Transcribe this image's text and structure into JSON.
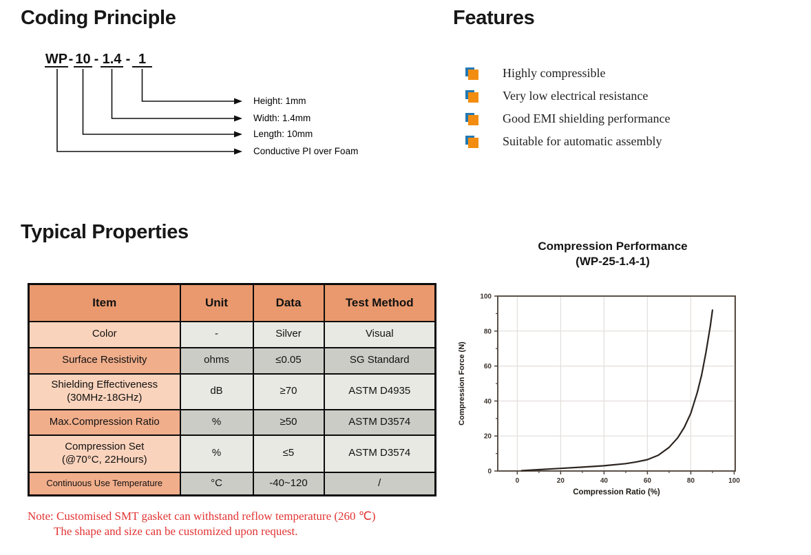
{
  "colors": {
    "accent_orange": "#E9996D",
    "row_item_light": "#FAD3BC",
    "row_item_medium": "#F1AE8B",
    "row_cell_light": "#E9E9E3",
    "row_cell_dark": "#CCCCC6",
    "bullet_orange": "#F28D11",
    "bullet_blue": "#2278B5",
    "note_red": "#E33434",
    "curve_color": "#2B2420"
  },
  "sections": {
    "coding": {
      "title": "Coding Principle",
      "code": {
        "parts": [
          "WP",
          "10",
          "1.4",
          "1"
        ],
        "separator": "-"
      },
      "callouts": [
        "Height: 1mm",
        "Width: 1.4mm",
        "Length: 10mm",
        "Conductive PI over Foam"
      ]
    },
    "features": {
      "title": "Features",
      "items": [
        "Highly compressible",
        "Very low electrical resistance",
        "Good EMI shielding performance",
        "Suitable for automatic assembly"
      ]
    },
    "properties": {
      "title": "Typical Properties",
      "table": {
        "headers": [
          "Item",
          "Unit",
          "Data",
          "Test Method"
        ],
        "rows": [
          {
            "item": "Color",
            "item2": "",
            "unit": "-",
            "data": "Silver",
            "method": "Visual"
          },
          {
            "item": "Surface Resistivity",
            "item2": "",
            "unit": "ohms",
            "data": "≤0.05",
            "method": "SG Standard"
          },
          {
            "item": "Shielding Effectiveness",
            "item2": "(30MHz-18GHz)",
            "unit": "dB",
            "data": "≥70",
            "method": "ASTM D4935"
          },
          {
            "item": "Max.Compression Ratio",
            "item2": "",
            "unit": "%",
            "data": "≥50",
            "method": "ASTM D3574"
          },
          {
            "item": "Compression Set",
            "item2": "(@70°C, 22Hours)",
            "unit": "%",
            "data": "≤5",
            "method": "ASTM D3574"
          },
          {
            "item": "Continuous Use Temperature",
            "item2": "",
            "unit": "°C",
            "data": "-40~120",
            "method": "/"
          }
        ]
      },
      "note_line1": "Note: Customised SMT gasket can withstand reflow temperature (260 ℃)",
      "note_line2": "The shape and size can be customized upon request."
    }
  },
  "chart_data": {
    "type": "line",
    "title": "Compression Performance",
    "subtitle": "(WP-25-1.4-1)",
    "xlabel": "Compression Ratio (%)",
    "ylabel": "Compression Force (N)",
    "xlim": [
      -9,
      100.5
    ],
    "ylim": [
      0,
      100
    ],
    "x_ticks": [
      0,
      20,
      40,
      60,
      80,
      100
    ],
    "y_ticks": [
      0,
      20,
      40,
      60,
      80,
      100
    ],
    "minor_tick_step": 10,
    "grid": true,
    "legend": "none",
    "series": [
      {
        "name": "WP-25-1.4-1",
        "points": [
          [
            2,
            0.2
          ],
          [
            10,
            0.8
          ],
          [
            20,
            1.5
          ],
          [
            30,
            2.2
          ],
          [
            40,
            3
          ],
          [
            50,
            4.2
          ],
          [
            55,
            5.2
          ],
          [
            60,
            6.5
          ],
          [
            65,
            9
          ],
          [
            70,
            13.5
          ],
          [
            74,
            19
          ],
          [
            77,
            25
          ],
          [
            80,
            33
          ],
          [
            83,
            45
          ],
          [
            85,
            55
          ],
          [
            87,
            68
          ],
          [
            89,
            83
          ],
          [
            90,
            92
          ]
        ]
      }
    ]
  }
}
